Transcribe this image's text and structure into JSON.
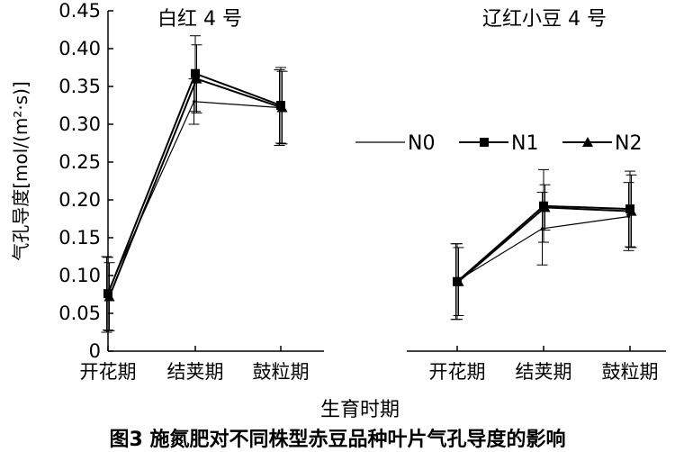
{
  "chart_data": {
    "type": "line",
    "xlabel": "生育时期",
    "ylabel": "气孔导度[mol/(m²·s)]",
    "ylim": [
      0,
      0.45
    ],
    "yticks": [
      "0",
      "0.05",
      "0.10",
      "0.15",
      "0.20",
      "0.25",
      "0.30",
      "0.35",
      "0.40",
      "0.45"
    ],
    "categories": [
      "开花期",
      "结荚期",
      "鼓粒期"
    ],
    "legend": {
      "position": "right",
      "entries": [
        "N0",
        "N1",
        "N2"
      ]
    },
    "groups": [
      {
        "label": "白红 4 号",
        "series": [
          {
            "name": "N0",
            "marker": "none",
            "values": [
              0.075,
              0.33,
              0.322
            ],
            "errors": [
              0.05,
              0.03,
              0.05
            ]
          },
          {
            "name": "N1",
            "marker": "square",
            "values": [
              0.076,
              0.367,
              0.325
            ],
            "errors": [
              0.048,
              0.05,
              0.05
            ]
          },
          {
            "name": "N2",
            "marker": "triangle",
            "values": [
              0.072,
              0.36,
              0.322
            ],
            "errors": [
              0.045,
              0.045,
              0.048
            ]
          }
        ]
      },
      {
        "label": "辽红小豆 4 号",
        "series": [
          {
            "name": "N0",
            "marker": "none",
            "values": [
              0.092,
              0.162,
              0.178
            ],
            "errors": [
              0.05,
              0.048,
              0.045
            ]
          },
          {
            "name": "N1",
            "marker": "square",
            "values": [
              0.092,
              0.192,
              0.188
            ],
            "errors": [
              0.05,
              0.048,
              0.05
            ]
          },
          {
            "name": "N2",
            "marker": "triangle",
            "values": [
              0.092,
              0.19,
              0.185
            ],
            "errors": [
              0.045,
              0.03,
              0.048
            ]
          }
        ]
      }
    ]
  },
  "caption": "图3 施氮肥对不同株型赤豆品种叶片气孔导度的影响"
}
